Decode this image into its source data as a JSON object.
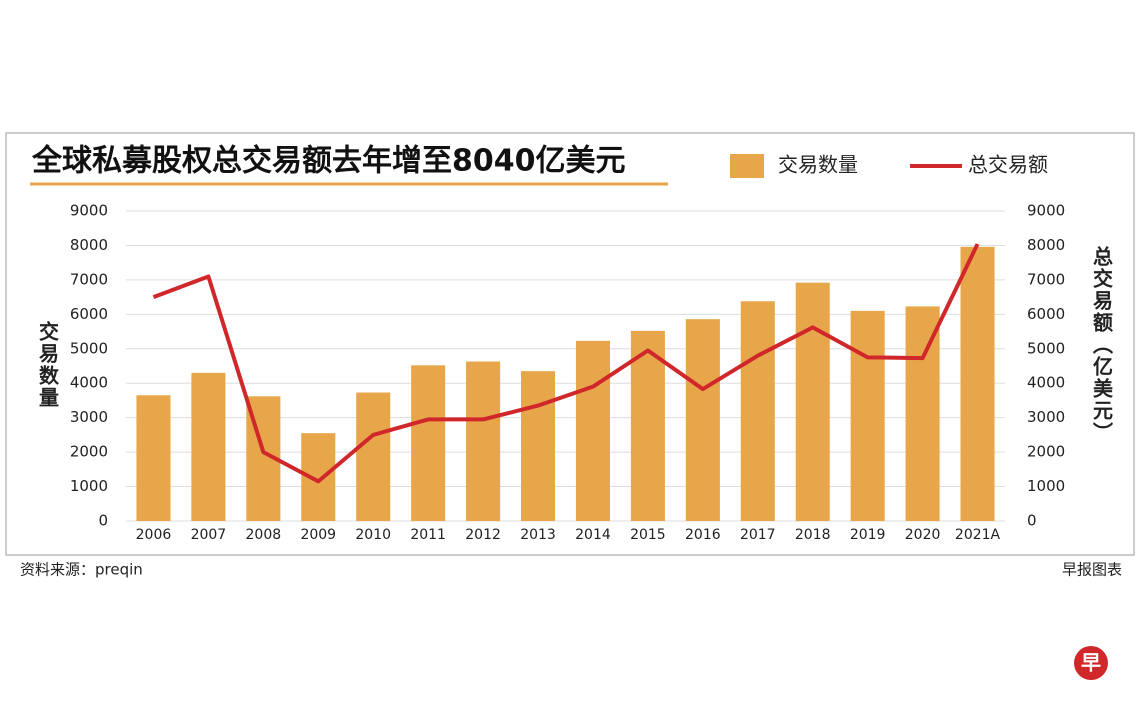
{
  "chart_data": {
    "type": "bar",
    "title": "全球私募股权总交易额去年增至8040亿美元",
    "categories": [
      "2006",
      "2007",
      "2008",
      "2009",
      "2010",
      "2011",
      "2012",
      "2013",
      "2014",
      "2015",
      "2016",
      "2017",
      "2018",
      "2019",
      "2020",
      "2021A"
    ],
    "series": [
      {
        "name": "交易数量",
        "type": "bar",
        "axis": "y",
        "color": "#e8a64a",
        "values": [
          3650,
          4300,
          3620,
          2550,
          3730,
          4520,
          4630,
          4350,
          5230,
          5520,
          5860,
          6380,
          6920,
          6100,
          6230,
          7960
        ]
      },
      {
        "name": "总交易额",
        "type": "line",
        "axis": "y2",
        "color": "#d0272a",
        "values": [
          6500,
          7100,
          2000,
          1150,
          2500,
          2950,
          2950,
          3350,
          3900,
          4950,
          3830,
          4800,
          5620,
          4750,
          4730,
          8040
        ]
      }
    ],
    "ylabel": "交易数量",
    "y2label": "总交易额（亿美元）",
    "ylim": [
      0,
      9000
    ],
    "yticks": [
      0,
      1000,
      2000,
      3000,
      4000,
      5000,
      6000,
      7000,
      8000,
      9000
    ],
    "y2lim": [
      0,
      9000
    ],
    "y2ticks": [
      0,
      1000,
      2000,
      3000,
      4000,
      5000,
      6000,
      7000,
      8000,
      9000
    ],
    "grid": true,
    "legend": "top-right"
  },
  "source": "资料来源：preqin",
  "credit": "早报图表",
  "logo": "早"
}
